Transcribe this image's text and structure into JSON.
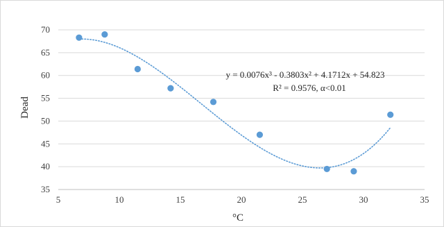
{
  "chart_data": {
    "type": "scatter",
    "title": "",
    "xlabel": "°C",
    "ylabel": "Dead",
    "xlim": [
      5,
      35
    ],
    "ylim": [
      35,
      70
    ],
    "xticks": [
      5,
      10,
      15,
      20,
      25,
      30,
      35
    ],
    "yticks": [
      35,
      40,
      45,
      50,
      55,
      60,
      65,
      70
    ],
    "grid": "horizontal",
    "legend": "none",
    "marker_color": "#5B9BD5",
    "trendline_color": "#5B9BD5",
    "points": [
      {
        "x": 6.7,
        "y": 68.3
      },
      {
        "x": 8.8,
        "y": 69.0
      },
      {
        "x": 11.5,
        "y": 61.4
      },
      {
        "x": 14.2,
        "y": 57.2
      },
      {
        "x": 17.7,
        "y": 54.2
      },
      {
        "x": 21.5,
        "y": 47.0
      },
      {
        "x": 27.0,
        "y": 39.5
      },
      {
        "x": 29.2,
        "y": 39.0
      },
      {
        "x": 32.2,
        "y": 51.4
      }
    ],
    "trendline": {
      "type": "polynomial",
      "coefficients": [
        0.0076,
        -0.3803,
        4.1712,
        54.823
      ],
      "x_range": [
        6.7,
        32.2
      ]
    },
    "annotations": {
      "equation": "y = 0.0076x³ - 0.3803x² + 4.1712x + 54.823",
      "stats": "R² = 0.9576, α<0.01"
    }
  }
}
